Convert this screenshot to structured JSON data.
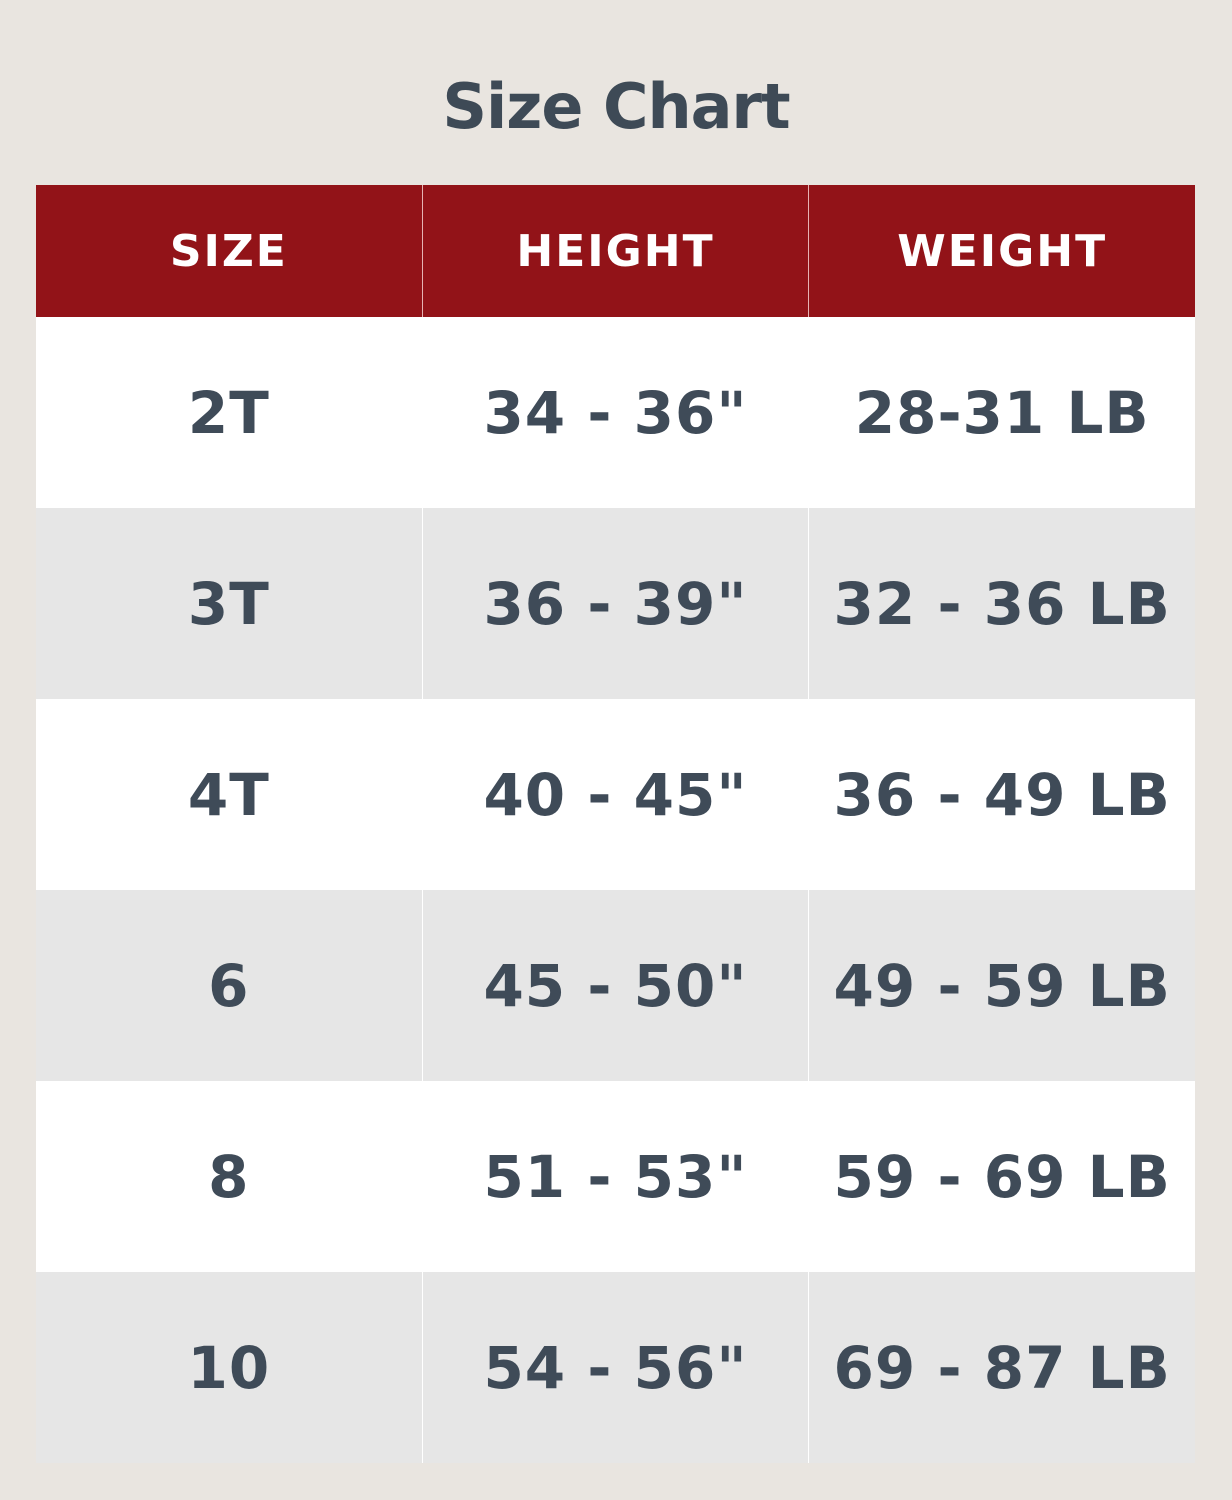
{
  "title": "Size Chart",
  "colors": {
    "header": "#921318",
    "text": "#3f4b58",
    "row_alt": "#e6e6e6"
  },
  "headers": [
    "SIZE",
    "HEIGHT",
    "WEIGHT"
  ],
  "rows": [
    [
      "2T",
      "34 - 36\"",
      "28-31 LB"
    ],
    [
      "3T",
      "36 - 39\"",
      "32 - 36 LB"
    ],
    [
      "4T",
      "40 - 45\"",
      "36 - 49 LB"
    ],
    [
      "6",
      "45 - 50\"",
      "49 - 59 LB"
    ],
    [
      "8",
      "51 - 53\"",
      "59 - 69 LB"
    ],
    [
      "10",
      "54 - 56\"",
      "69 - 87 LB"
    ]
  ]
}
